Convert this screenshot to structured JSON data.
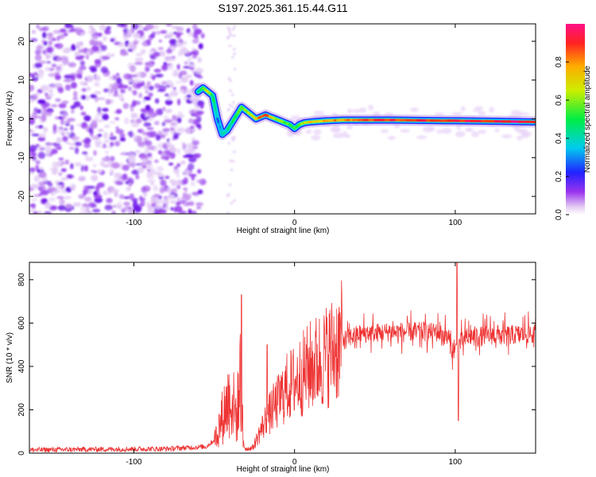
{
  "title": "S197.2025.361.15.44.G11",
  "chart_data": [
    {
      "type": "heatmap",
      "title": "S197.2025.361.15.44.G11",
      "xlabel": "Height of straight line (km)",
      "ylabel": "Frequency (Hz)",
      "xlim": [
        -165,
        150
      ],
      "ylim": [
        -24.5,
        24.5
      ],
      "xticks": [
        -100,
        0,
        100
      ],
      "xtick_labels": [
        "-100",
        "0",
        "100"
      ],
      "yticks": [
        -20,
        -10,
        0,
        10,
        20
      ],
      "ytick_labels": [
        "-20",
        "-10",
        "0",
        "10",
        "20"
      ],
      "colorbar": {
        "label": "Normalized spectral amplitude",
        "range": [
          0,
          1
        ],
        "ticks": [
          0.0,
          0.2,
          0.4,
          0.6,
          0.8
        ],
        "tick_labels": [
          "0.0",
          "0.2",
          "0.4",
          "0.6",
          "0.8"
        ]
      },
      "ridge": {
        "description": "main spectral ridge frequency vs height",
        "x": [
          -60,
          -57,
          -54,
          -51,
          -48,
          -45,
          -42,
          -39,
          -36,
          -33,
          -30,
          -27,
          -24,
          -21,
          -18,
          -15,
          -12,
          -9,
          -6,
          -3,
          0,
          3,
          6,
          10,
          20,
          30,
          40,
          60,
          80,
          95,
          100,
          120,
          150
        ],
        "y": [
          7,
          8,
          7,
          6,
          0,
          -4,
          -3,
          -1,
          1,
          3,
          2,
          1,
          0,
          0.5,
          1,
          0.5,
          0,
          -0.5,
          -1,
          -1.5,
          -2.5,
          -1.5,
          -1,
          -0.8,
          -0.5,
          -0.3,
          -0.3,
          -0.3,
          -0.4,
          -0.5,
          -0.5,
          -0.6,
          -0.8
        ],
        "amplitude": [
          0.45,
          0.5,
          0.7,
          0.5,
          0.3,
          0.35,
          0.4,
          0.45,
          0.5,
          0.55,
          0.6,
          0.65,
          0.7,
          0.85,
          0.9,
          0.8,
          0.6,
          0.6,
          0.55,
          0.55,
          0.5,
          0.55,
          0.65,
          0.7,
          0.75,
          0.8,
          0.85,
          0.88,
          0.9,
          0.92,
          0.9,
          0.93,
          0.95
        ]
      },
      "noise_region": {
        "x_range": [
          -165,
          -60
        ],
        "amplitude": "low (~0.0-0.15)"
      },
      "colormap": "rainbow (violet to red)"
    },
    {
      "type": "line",
      "xlabel": "Height of straight line (km)",
      "ylabel": "SNR (10 * v/v)",
      "xlim": [
        -165,
        150
      ],
      "ylim": [
        0,
        880
      ],
      "xticks": [
        -100,
        0,
        100
      ],
      "xtick_labels": [
        "-100",
        "0",
        "100"
      ],
      "yticks": [
        0,
        200,
        400,
        600,
        800
      ],
      "ytick_labels": [
        "0",
        "200",
        "400",
        "600",
        "800"
      ],
      "color": "#ee3333",
      "envelope": {
        "x": [
          -165,
          -120,
          -80,
          -55,
          -50,
          -46,
          -44,
          -40,
          -36,
          -33,
          -32,
          -30,
          -26,
          -22,
          -18,
          -14,
          -10,
          -5,
          0,
          10,
          20,
          30,
          40,
          60,
          80,
          90,
          95,
          98,
          100,
          103,
          110,
          130,
          150
        ],
        "y": [
          15,
          18,
          20,
          30,
          60,
          150,
          200,
          280,
          180,
          420,
          40,
          20,
          25,
          90,
          150,
          200,
          240,
          300,
          330,
          400,
          450,
          520,
          550,
          560,
          560,
          555,
          540,
          480,
          470,
          510,
          540,
          545,
          550
        ]
      },
      "peaks": [
        {
          "x": -33,
          "y": 730
        },
        {
          "x": -17,
          "y": 500
        },
        {
          "x": 101,
          "y": 880
        },
        {
          "x": 102,
          "y": 150
        }
      ]
    }
  ]
}
